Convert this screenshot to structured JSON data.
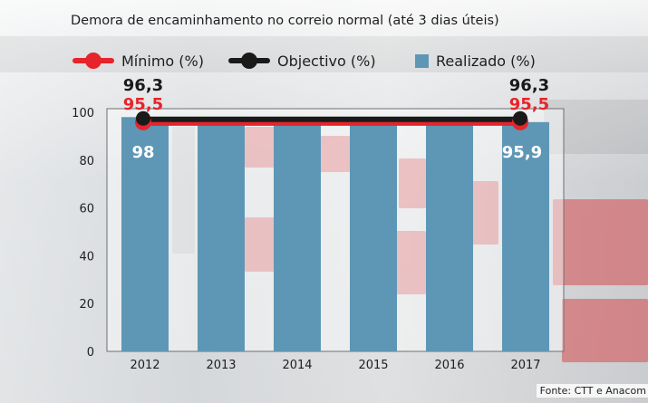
{
  "chart_data": {
    "type": "bar",
    "title": "Demora de encaminhamento no correio normal (até 3 dias úteis)",
    "categories": [
      "2012",
      "2013",
      "2014",
      "2015",
      "2016",
      "2017"
    ],
    "series": [
      {
        "name": "Mínimo (%)",
        "kind": "line",
        "color": "#e5242b",
        "values": [
          95.5,
          95.5,
          95.5,
          95.5,
          95.5,
          95.5
        ]
      },
      {
        "name": "Objectivo (%)",
        "kind": "line",
        "color": "#1a1a1a",
        "values": [
          96.3,
          96.3,
          96.3,
          96.3,
          96.3,
          96.3
        ]
      },
      {
        "name": "Realizado (%)",
        "kind": "bar",
        "color": "#5e97b5",
        "values": [
          98,
          98,
          98,
          98,
          98,
          95.9
        ]
      }
    ],
    "yticks": [
      "100",
      "80",
      "60",
      "40",
      "20",
      "0"
    ],
    "ylim": [
      0,
      100
    ],
    "data_labels": {
      "minimo_2012": "95,5",
      "objectivo_2012": "96,3",
      "realizado_2012": "98",
      "minimo_2017": "95,5",
      "objectivo_2017": "96,3",
      "realizado_2017": "95,9"
    },
    "legend_position": "top",
    "grid": false
  },
  "source": "Fonte: CTT e Anacom"
}
